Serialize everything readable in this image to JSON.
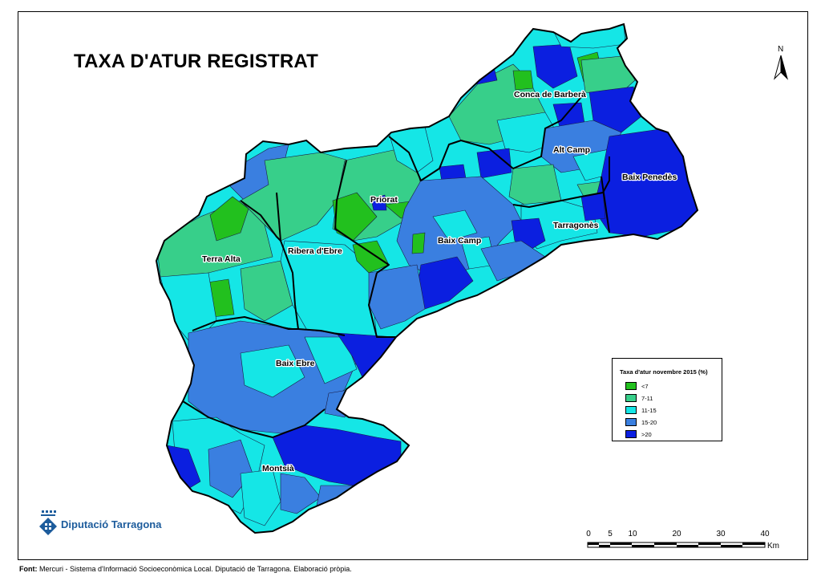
{
  "title": "TAXA D'ATUR REGISTRAT",
  "colors": {
    "lt7": "#22c01e",
    "r7_11": "#37cf8a",
    "r11_15": "#15e6e6",
    "r15_20": "#3a7fe0",
    "gt20": "#0b1fe0"
  },
  "regions": {
    "conca_de_barbera": "Conca de Barberà",
    "alt_camp": "Alt Camp",
    "baix_penedes": "Baix Penedès",
    "priorat": "Priorat",
    "tarragones": "Tarragonès",
    "baix_camp": "Baix Camp",
    "terra_alta": "Terra Alta",
    "ribera_debre": "Ribera d'Ebre",
    "baix_ebre": "Baix Ebre",
    "montsia": "Montsià"
  },
  "legend": {
    "title": "Taxa d'atur novembre 2015 (%)",
    "items": [
      {
        "label": "<7",
        "color": "#22c01e"
      },
      {
        "label": "7-11",
        "color": "#37cf8a"
      },
      {
        "label": "11-15",
        "color": "#15e6e6"
      },
      {
        "label": "15-20",
        "color": "#3a7fe0"
      },
      {
        "label": ">20",
        "color": "#0b1fe0"
      }
    ]
  },
  "north_arrow": {
    "letter": "N",
    "icon": "north-arrow-icon"
  },
  "scale_bar": {
    "ticks": [
      "0",
      "5",
      "10",
      "20",
      "30",
      "40"
    ],
    "unit": "Km"
  },
  "logo": {
    "text": "Diputació Tarragona",
    "icon": "diputacio-emblem-icon"
  },
  "footer": {
    "label": "Font:",
    "text": " Mercuri - Sistema d'Informació Socioeconòmica Local. Diputació de Tarragona. Elaboració pròpia."
  }
}
